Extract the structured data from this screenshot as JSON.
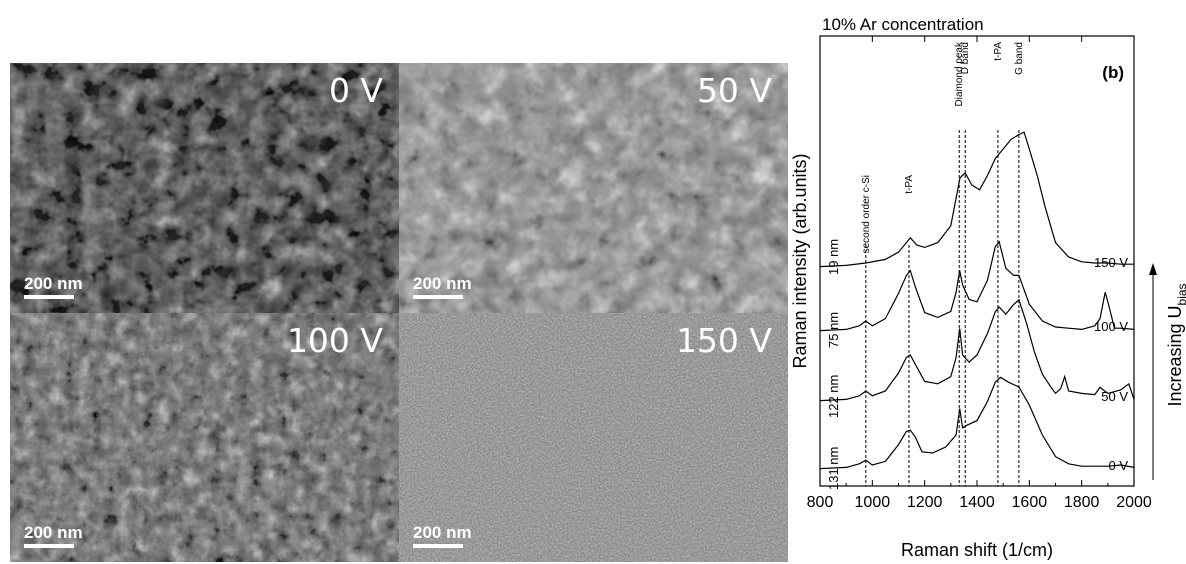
{
  "panels": [
    {
      "label": "0 V",
      "scale_bar": "200 nm",
      "texture": "coarse-facets"
    },
    {
      "label": "50 V",
      "scale_bar": "200 nm",
      "texture": "bright-facets"
    },
    {
      "label": "100 V",
      "scale_bar": "200 nm",
      "texture": "cauliflower"
    },
    {
      "label": "150 V",
      "scale_bar": "200 nm",
      "texture": "fine-grain"
    }
  ],
  "chart_data": {
    "type": "line",
    "title": "10% Ar concentration",
    "panel_tag": "(b)",
    "xlabel": "Raman shift (1/cm)",
    "ylabel": "Raman intensity (arb.units)",
    "right_axis_label": "Increasing U",
    "right_axis_subscript": "bias",
    "xlim": [
      800,
      2000
    ],
    "xticks": [
      800,
      1000,
      1200,
      1400,
      1600,
      1800,
      2000
    ],
    "grid": false,
    "legend": "none",
    "reference_lines": [
      {
        "x": 975,
        "label": "second order c-Si"
      },
      {
        "x": 1140,
        "label": "t-PA"
      },
      {
        "x": 1332,
        "label": "Diamond peak"
      },
      {
        "x": 1355,
        "label": "D band"
      },
      {
        "x": 1480,
        "label": "t-PA"
      },
      {
        "x": 1560,
        "label": "G band"
      }
    ],
    "series": [
      {
        "name": "0 V",
        "thickness": "131 nm",
        "x": [
          800,
          900,
          950,
          975,
          1000,
          1050,
          1100,
          1130,
          1145,
          1165,
          1190,
          1230,
          1280,
          1320,
          1334,
          1345,
          1360,
          1400,
          1440,
          1470,
          1490,
          1520,
          1560,
          1600,
          1650,
          1700,
          1750,
          1800,
          1850,
          1900,
          1950,
          2000
        ],
        "y": [
          0.02,
          0.03,
          0.06,
          0.09,
          0.05,
          0.08,
          0.22,
          0.33,
          0.34,
          0.28,
          0.16,
          0.15,
          0.2,
          0.3,
          0.52,
          0.36,
          0.38,
          0.42,
          0.58,
          0.74,
          0.78,
          0.74,
          0.7,
          0.55,
          0.3,
          0.12,
          0.06,
          0.04,
          0.04,
          0.04,
          0.05,
          0.03
        ]
      },
      {
        "name": "50 V",
        "thickness": "122 nm",
        "x": [
          800,
          900,
          950,
          975,
          1000,
          1050,
          1100,
          1130,
          1145,
          1165,
          1200,
          1250,
          1300,
          1320,
          1334,
          1345,
          1370,
          1400,
          1440,
          1470,
          1485,
          1510,
          1540,
          1560,
          1590,
          1620,
          1650,
          1680,
          1700,
          1720,
          1735,
          1750,
          1800,
          1850,
          1870,
          1900,
          1950,
          1980,
          2000
        ],
        "y": [
          0.02,
          0.03,
          0.06,
          0.1,
          0.06,
          0.1,
          0.25,
          0.38,
          0.4,
          0.32,
          0.18,
          0.16,
          0.22,
          0.38,
          0.62,
          0.4,
          0.34,
          0.4,
          0.58,
          0.76,
          0.8,
          0.74,
          0.82,
          0.86,
          0.66,
          0.42,
          0.24,
          0.14,
          0.08,
          0.12,
          0.22,
          0.1,
          0.08,
          0.07,
          0.13,
          0.08,
          0.11,
          0.16,
          0.03
        ]
      },
      {
        "name": "100 V",
        "thickness": "75 nm",
        "x": [
          800,
          900,
          950,
          975,
          1000,
          1050,
          1100,
          1130,
          1145,
          1165,
          1200,
          1250,
          1300,
          1320,
          1334,
          1345,
          1370,
          1400,
          1440,
          1470,
          1485,
          1510,
          1540,
          1560,
          1580,
          1600,
          1650,
          1700,
          1750,
          1800,
          1850,
          1870,
          1890,
          1905,
          1925,
          1950,
          2000
        ],
        "y": [
          0.02,
          0.03,
          0.06,
          0.1,
          0.06,
          0.12,
          0.33,
          0.48,
          0.52,
          0.38,
          0.17,
          0.13,
          0.18,
          0.34,
          0.52,
          0.4,
          0.28,
          0.26,
          0.44,
          0.72,
          0.76,
          0.54,
          0.48,
          0.48,
          0.36,
          0.24,
          0.1,
          0.05,
          0.04,
          0.03,
          0.06,
          0.12,
          0.34,
          0.22,
          0.04,
          0.04,
          0.03
        ]
      },
      {
        "name": "150 V",
        "thickness": "19 nm",
        "x": [
          800,
          900,
          975,
          1050,
          1100,
          1130,
          1145,
          1170,
          1200,
          1250,
          1300,
          1335,
          1355,
          1380,
          1410,
          1440,
          1470,
          1500,
          1530,
          1560,
          1580,
          1600,
          1630,
          1660,
          1700,
          1750,
          1800,
          1850,
          1900,
          1950,
          2000
        ],
        "y": [
          0.02,
          0.03,
          0.05,
          0.08,
          0.14,
          0.22,
          0.26,
          0.2,
          0.18,
          0.22,
          0.36,
          0.76,
          0.8,
          0.7,
          0.66,
          0.78,
          0.92,
          1.0,
          1.08,
          1.12,
          1.14,
          1.0,
          0.78,
          0.52,
          0.22,
          0.1,
          0.06,
          0.05,
          0.05,
          0.04,
          0.04
        ]
      }
    ]
  }
}
